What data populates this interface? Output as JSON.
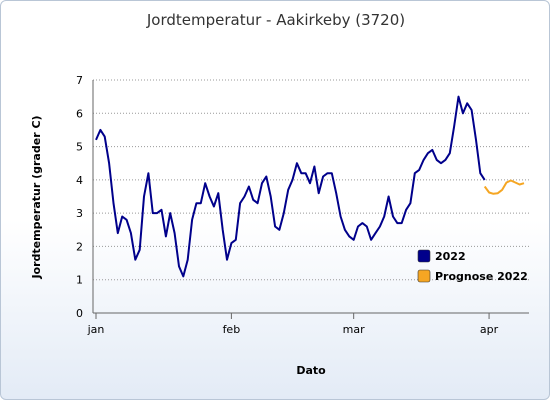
{
  "chart_data": {
    "type": "line",
    "title": "Jordtemperatur - Aakirkeby (3720)",
    "xlabel": "Dato",
    "ylabel": "Jordtemperatur (grader C)",
    "ylim": [
      0,
      7
    ],
    "yticks": [
      0,
      1,
      2,
      3,
      4,
      5,
      6,
      7
    ],
    "xticks": [
      {
        "label": "jan",
        "day": 0
      },
      {
        "label": "feb",
        "day": 31
      },
      {
        "label": "mar",
        "day": 59
      },
      {
        "label": "apr",
        "day": 90
      }
    ],
    "xlim": [
      0,
      98
    ],
    "grid": "horizontal dotted",
    "legend_position": "right",
    "series": [
      {
        "name": "2022",
        "color": "#00008b",
        "x": [
          0,
          1,
          2,
          3,
          4,
          5,
          6,
          7,
          8,
          9,
          10,
          11,
          12,
          13,
          14,
          15,
          16,
          17,
          18,
          19,
          20,
          21,
          22,
          23,
          24,
          25,
          26,
          27,
          28,
          29,
          30,
          31,
          32,
          33,
          34,
          35,
          36,
          37,
          38,
          39,
          40,
          41,
          42,
          43,
          44,
          45,
          46,
          47,
          48,
          49,
          50,
          51,
          52,
          53,
          54,
          55,
          56,
          57,
          58,
          59,
          60,
          61,
          62,
          63,
          64,
          65,
          66,
          67,
          68,
          69,
          70,
          71,
          72,
          73,
          74,
          75,
          76,
          77,
          78,
          79,
          80,
          81,
          82,
          83,
          84,
          85,
          86,
          87,
          88,
          89
        ],
        "values": [
          5.2,
          5.5,
          5.3,
          4.5,
          3.3,
          2.4,
          2.9,
          2.8,
          2.4,
          1.6,
          1.9,
          3.5,
          4.2,
          3.0,
          3.0,
          3.1,
          2.3,
          3.0,
          2.4,
          1.4,
          1.1,
          1.6,
          2.8,
          3.3,
          3.3,
          3.9,
          3.5,
          3.2,
          3.6,
          2.5,
          1.6,
          2.1,
          2.2,
          3.3,
          3.5,
          3.8,
          3.4,
          3.3,
          3.9,
          4.1,
          3.5,
          2.6,
          2.5,
          3.0,
          3.7,
          4.0,
          4.5,
          4.2,
          4.2,
          3.9,
          4.4,
          3.6,
          4.1,
          4.2,
          4.2,
          3.6,
          2.9,
          2.5,
          2.3,
          2.2,
          2.6,
          2.7,
          2.6,
          2.2,
          2.4,
          2.6,
          2.9,
          3.5,
          2.9,
          2.7,
          2.7,
          3.1,
          3.3,
          4.2,
          4.3,
          4.6,
          4.8,
          4.9,
          4.6,
          4.5,
          4.6,
          4.8,
          5.6,
          6.5,
          6.0,
          6.3,
          6.1,
          5.2,
          4.2,
          4.0
        ]
      },
      {
        "name": "Prognose 2022",
        "color": "#f5a623",
        "x": [
          89,
          90,
          91,
          92,
          93,
          94,
          95,
          96,
          97,
          98
        ],
        "values": [
          3.8,
          3.62,
          3.58,
          3.6,
          3.7,
          3.92,
          3.98,
          3.92,
          3.86,
          3.9
        ]
      }
    ]
  }
}
